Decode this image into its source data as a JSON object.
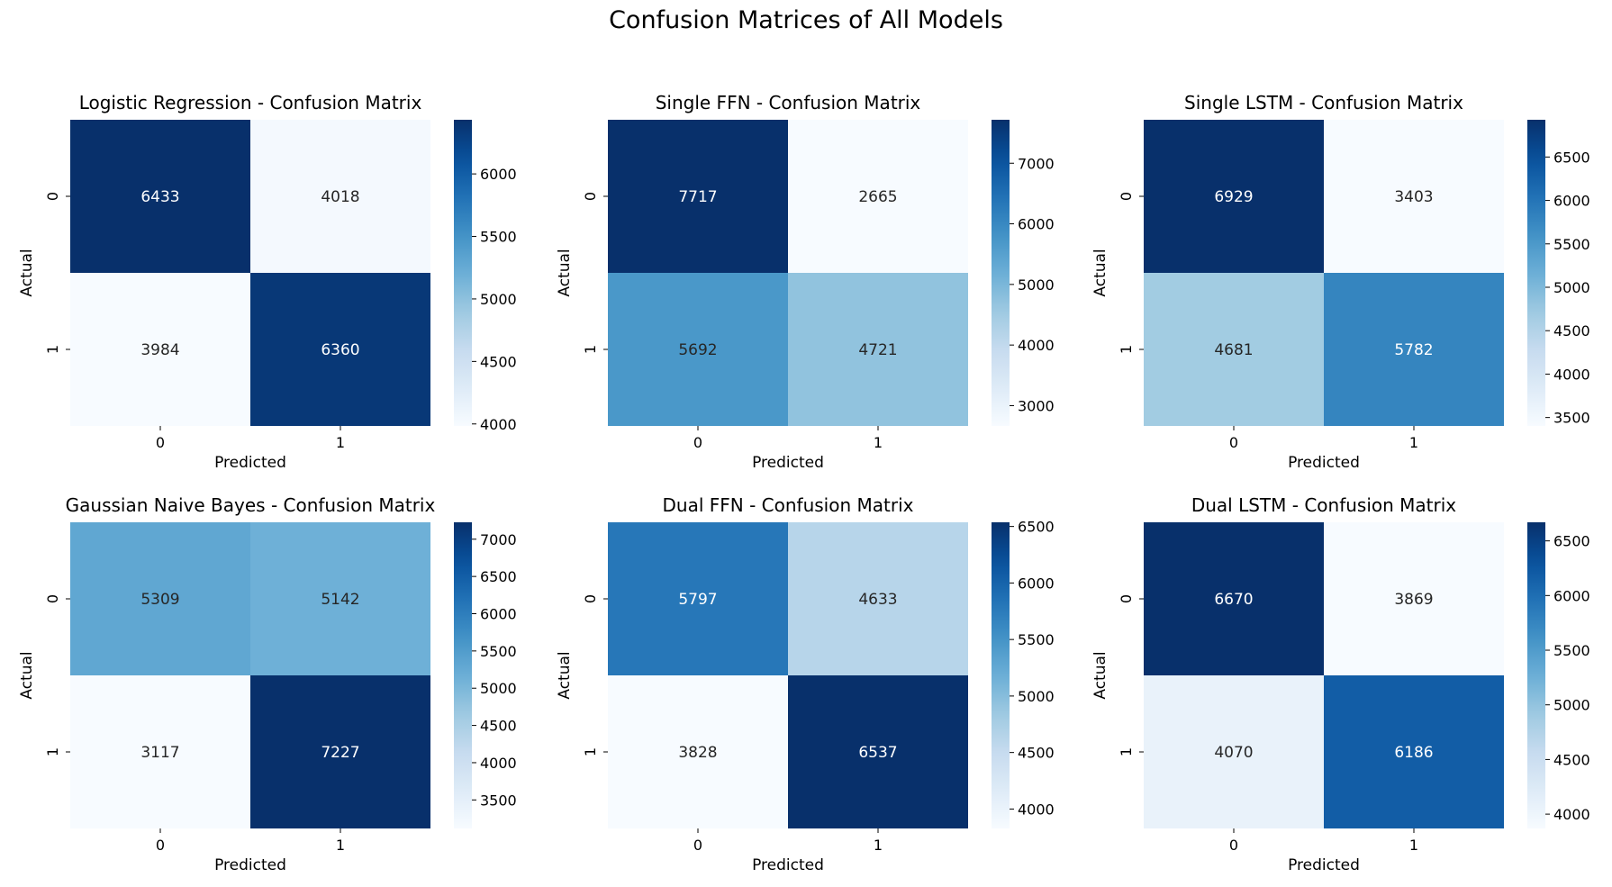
{
  "figure": {
    "suptitle": "Confusion Matrices of All Models"
  },
  "colormap": "Blues",
  "chart_data": [
    {
      "type": "heatmap",
      "title": "Logistic Regression - Confusion Matrix",
      "xlabel": "Predicted",
      "ylabel": "Actual",
      "x_ticklabels": [
        "0",
        "1"
      ],
      "y_ticklabels": [
        "0",
        "1"
      ],
      "values": [
        [
          6433,
          4018
        ],
        [
          3984,
          6360
        ]
      ],
      "colorbar": {
        "range": [
          3984,
          6433
        ],
        "ticks": [
          4000,
          4500,
          5000,
          5500,
          6000
        ]
      }
    },
    {
      "type": "heatmap",
      "title": "Single FFN - Confusion Matrix",
      "xlabel": "Predicted",
      "ylabel": "Actual",
      "x_ticklabels": [
        "0",
        "1"
      ],
      "y_ticklabels": [
        "0",
        "1"
      ],
      "values": [
        [
          7717,
          2665
        ],
        [
          5692,
          4721
        ]
      ],
      "colorbar": {
        "range": [
          2665,
          7717
        ],
        "ticks": [
          3000,
          4000,
          5000,
          6000,
          7000
        ]
      }
    },
    {
      "type": "heatmap",
      "title": "Single LSTM - Confusion Matrix",
      "xlabel": "Predicted",
      "ylabel": "Actual",
      "x_ticklabels": [
        "0",
        "1"
      ],
      "y_ticklabels": [
        "0",
        "1"
      ],
      "values": [
        [
          6929,
          3403
        ],
        [
          4681,
          5782
        ]
      ],
      "colorbar": {
        "range": [
          3403,
          6929
        ],
        "ticks": [
          3500,
          4000,
          4500,
          5000,
          5500,
          6000,
          6500
        ]
      }
    },
    {
      "type": "heatmap",
      "title": "Gaussian Naive Bayes - Confusion Matrix",
      "xlabel": "Predicted",
      "ylabel": "Actual",
      "x_ticklabels": [
        "0",
        "1"
      ],
      "y_ticklabels": [
        "0",
        "1"
      ],
      "values": [
        [
          5309,
          5142
        ],
        [
          3117,
          7227
        ]
      ],
      "colorbar": {
        "range": [
          3117,
          7227
        ],
        "ticks": [
          3500,
          4000,
          4500,
          5000,
          5500,
          6000,
          6500,
          7000
        ]
      }
    },
    {
      "type": "heatmap",
      "title": "Dual FFN - Confusion Matrix",
      "xlabel": "Predicted",
      "ylabel": "Actual",
      "x_ticklabels": [
        "0",
        "1"
      ],
      "y_ticklabels": [
        "0",
        "1"
      ],
      "values": [
        [
          5797,
          4633
        ],
        [
          3828,
          6537
        ]
      ],
      "colorbar": {
        "range": [
          3828,
          6537
        ],
        "ticks": [
          4000,
          4500,
          5000,
          5500,
          6000,
          6500
        ]
      }
    },
    {
      "type": "heatmap",
      "title": "Dual LSTM - Confusion Matrix",
      "xlabel": "Predicted",
      "ylabel": "Actual",
      "x_ticklabels": [
        "0",
        "1"
      ],
      "y_ticklabels": [
        "0",
        "1"
      ],
      "values": [
        [
          6670,
          3869
        ],
        [
          4070,
          6186
        ]
      ],
      "colorbar": {
        "range": [
          3869,
          6670
        ],
        "ticks": [
          4000,
          4500,
          5000,
          5500,
          6000,
          6500
        ]
      }
    }
  ]
}
